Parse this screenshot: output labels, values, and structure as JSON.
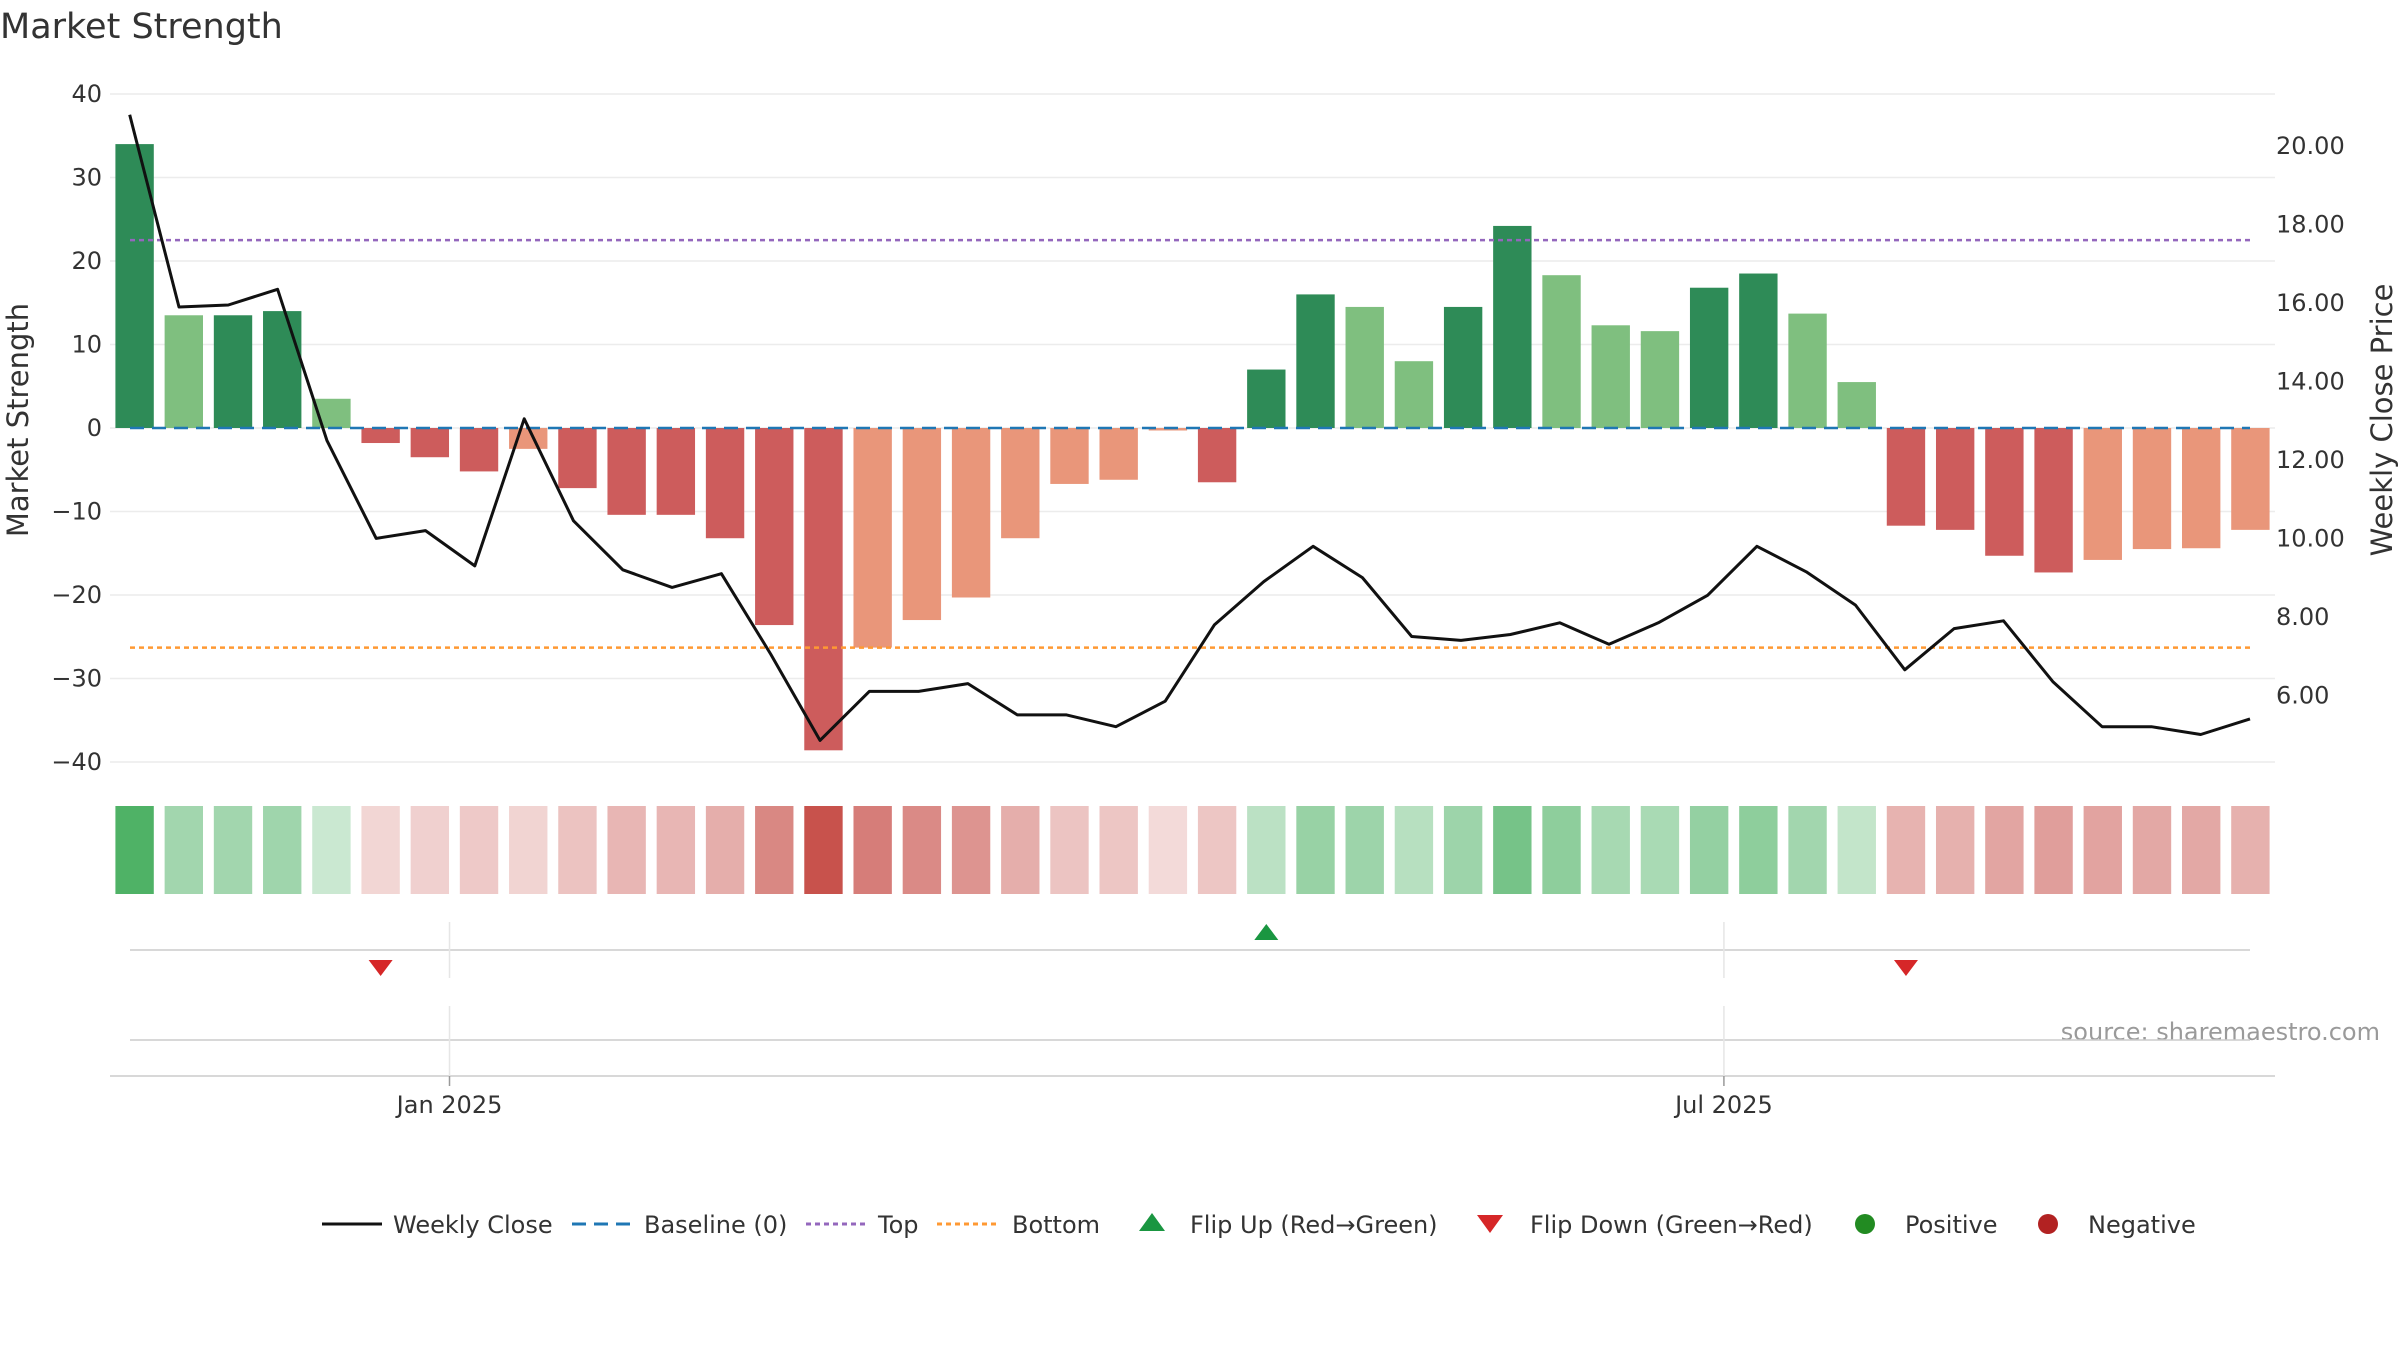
{
  "colors": {
    "strong_pos": "#2e8b57",
    "weak_pos": "#7fbf7f",
    "strong_neg": "#cd5c5c",
    "weak_neg": "#e9967a",
    "line": "#111111",
    "baseline": "#1f77b4",
    "top": "#9467bd",
    "bottom": "#ff9933",
    "flip_up": "#1a9641",
    "flip_down": "#d62728",
    "positive": "#228b22",
    "negative": "#b22222"
  },
  "chart_data": {
    "type": "bar",
    "title": "Market Strength",
    "ylabel_left": "Market Strength",
    "ylabel_right": "Weekly Close Price",
    "ylim_left": [
      -40,
      40
    ],
    "yticks_left": [
      "40",
      "30",
      "20",
      "10",
      "0",
      "−10",
      "−20",
      "−30",
      "−40"
    ],
    "ytick_values_left": [
      40,
      30,
      20,
      10,
      0,
      -10,
      -20,
      -30,
      -40
    ],
    "ylim_right": [
      4.3,
      21.33
    ],
    "yticks_right": [
      "20.00",
      "18.00",
      "16.00",
      "14.00",
      "12.00",
      "10.00",
      "8.00",
      "6.00"
    ],
    "ytick_values_right": [
      20,
      18,
      16,
      14,
      12,
      10,
      8,
      6
    ],
    "xticks": [
      {
        "label": "Jan 2025",
        "week": 6.4
      },
      {
        "label": "Jul 2025",
        "week": 32.3
      }
    ],
    "grid": true,
    "baseline": 0,
    "top": 22.5,
    "bottom": -26.3,
    "weeks": 44,
    "strength": [
      34,
      13.5,
      13.5,
      14,
      3.5,
      -1.8,
      -3.5,
      -5.2,
      -2.5,
      -7.2,
      -10.4,
      -10.4,
      -13.2,
      -23.6,
      -38.6,
      -26.3,
      -23,
      -20.3,
      -13.2,
      -6.7,
      -6.2,
      -0.3,
      -6.5,
      7,
      16,
      14.5,
      8,
      14.5,
      24.2,
      18.3,
      12.3,
      11.6,
      16.8,
      18.5,
      13.7,
      5.5,
      -11.7,
      -12.2,
      -15.3,
      -17.3,
      -15.8,
      -14.5,
      -14.4,
      -12.2
    ],
    "close": [
      20.8,
      15.9,
      15.95,
      16.35,
      12.5,
      10,
      10.2,
      9.3,
      13.05,
      10.45,
      9.2,
      8.75,
      9.1,
      7.05,
      4.85,
      6.1,
      6.1,
      6.3,
      5.5,
      5.5,
      5.2,
      5.85,
      7.8,
      8.9,
      9.8,
      9,
      7.5,
      7.4,
      7.55,
      7.85,
      7.3,
      7.85,
      8.55,
      9.8,
      9.15,
      8.3,
      6.65,
      7.7,
      7.9,
      6.35,
      5.2,
      5.2,
      5.0,
      5.4
    ],
    "flips": [
      {
        "type": "down",
        "week": 5
      },
      {
        "type": "up",
        "week": 23
      },
      {
        "type": "down",
        "week": 36
      }
    ],
    "legend": [
      {
        "label": "Weekly Close",
        "kind": "line"
      },
      {
        "label": "Baseline (0)",
        "kind": "baseline"
      },
      {
        "label": "Top",
        "kind": "top"
      },
      {
        "label": "Bottom",
        "kind": "bottom"
      },
      {
        "label": "Flip Up (Red→Green)",
        "kind": "flip_up"
      },
      {
        "label": "Flip Down (Green→Red)",
        "kind": "flip_down"
      },
      {
        "label": "Positive",
        "kind": "positive"
      },
      {
        "label": "Negative",
        "kind": "negative"
      }
    ],
    "source": "source: sharemaestro.com"
  }
}
